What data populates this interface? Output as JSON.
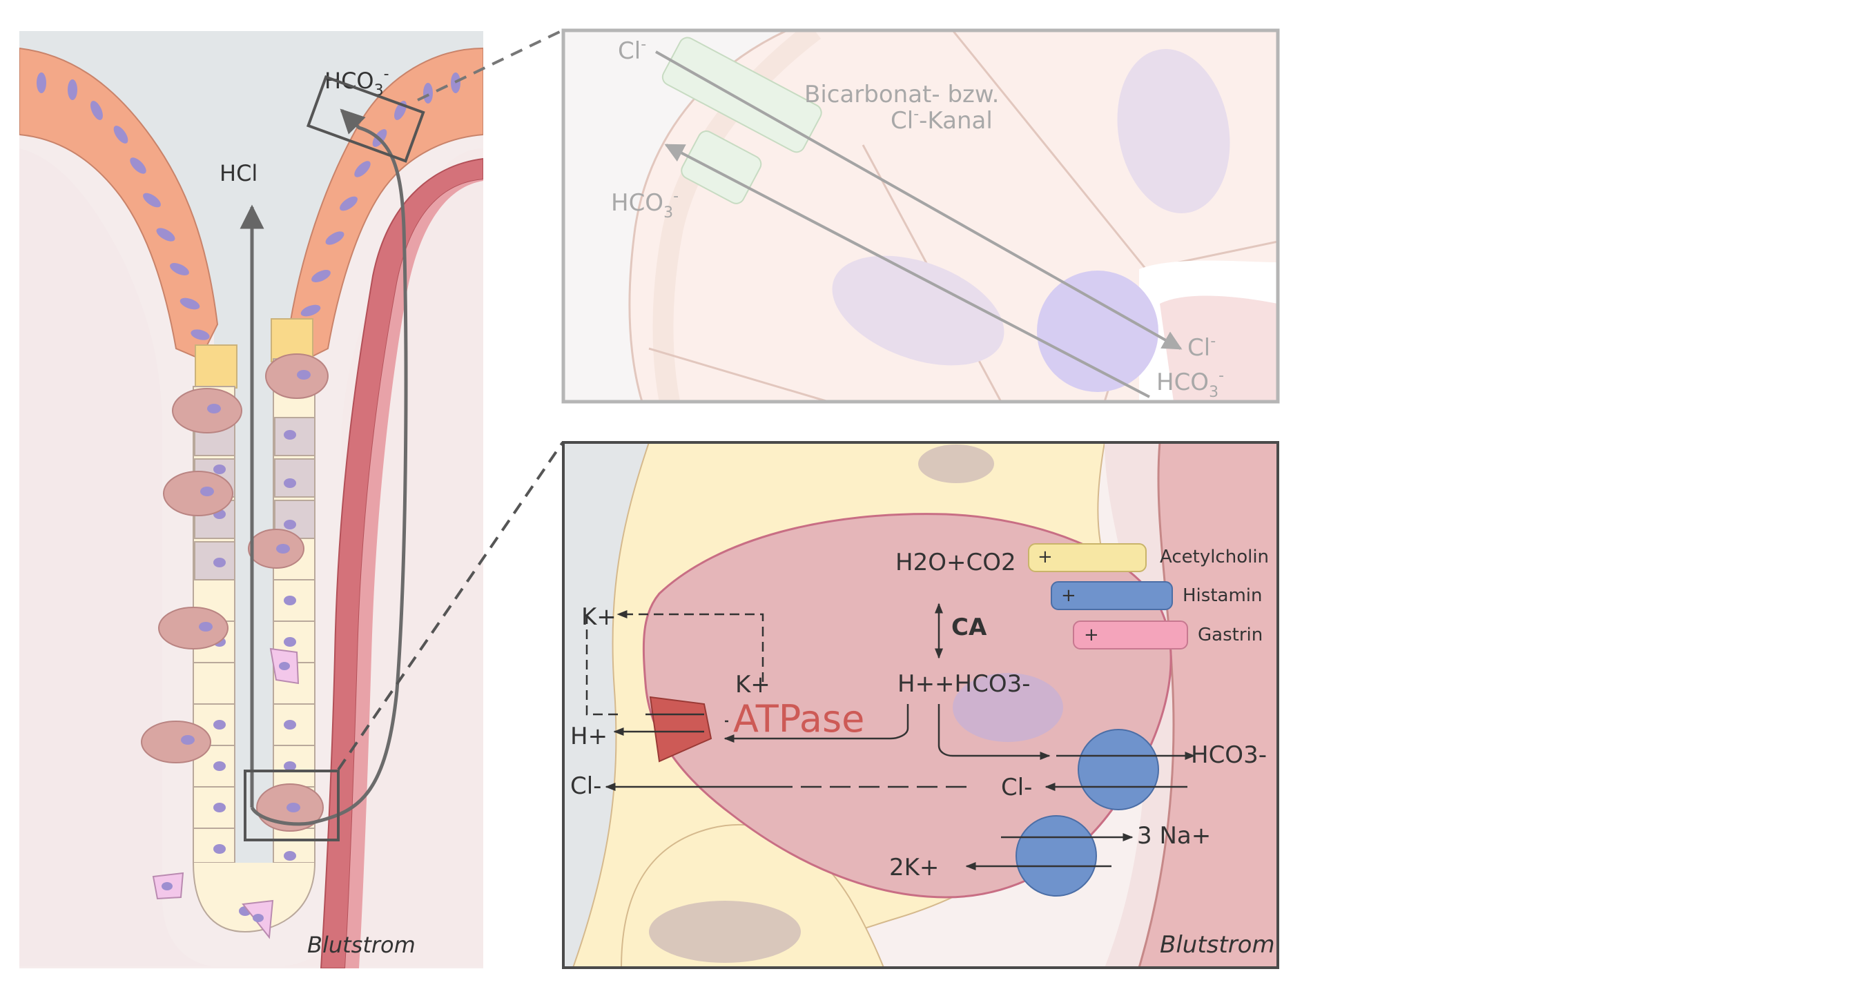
{
  "gland": {
    "lumen_label": "HCl",
    "bicarbonate_label": "HCO",
    "bicarbonate_sub": "3",
    "bicarbonate_sup": "-",
    "bloodstream_label": "Blutstrom"
  },
  "surface_detail": {
    "cl_label": "Cl",
    "cl_sup": "-",
    "channel_label_line1": "Bicarbonat- bzw.",
    "channel_label_line2_pre": "Cl",
    "channel_label_line2_sup": "-",
    "channel_label_line2_post": "-Kanal",
    "hco3_label": "HCO",
    "hco3_sub": "3",
    "hco3_sup": "-",
    "out_cl_label": "Cl",
    "out_cl_sup": "-",
    "out_hco3_label": "HCO",
    "out_hco3_sub": "3",
    "out_hco3_sup": "-"
  },
  "parietal_detail": {
    "h2o_co2": "H2O+CO2",
    "ca_label": "CA",
    "h_hco3": "H++HCO3-",
    "atpase_label": "ATPase",
    "k_outer": "K+",
    "k_inner": "K+",
    "h_outer": "H+",
    "cl_outer": "Cl-",
    "cl_inner": "Cl-",
    "hco3_out": "HCO3-",
    "na_label": "3 Na+",
    "k2_label": "2K+",
    "bloodstream_label": "Blutstrom",
    "receptors": [
      {
        "sign": "+",
        "label": "Acetylcholin",
        "color": "#f7e7a4"
      },
      {
        "sign": "+",
        "label": "Histamin",
        "color": "#6f93cc"
      },
      {
        "sign": "+",
        "label": "Gastrin",
        "color": "#f4a4bb"
      }
    ]
  },
  "colors": {
    "mucous_cell": "#f4a98c",
    "nucleus": "#9d8fd0",
    "parietal": "#d9a6a2",
    "chief_cell": "#fdf5d6",
    "blood_vessel": "#d4727a",
    "atpase": "#cd5a56",
    "transporter": "#6f93cc"
  }
}
